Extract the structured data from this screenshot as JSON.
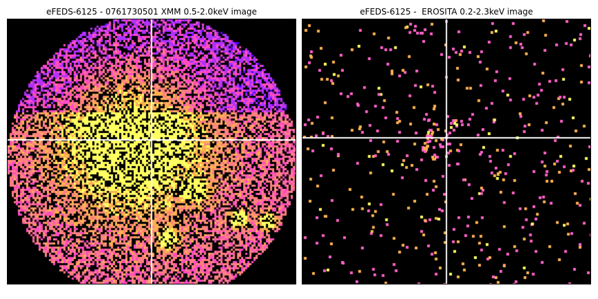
{
  "panels": [
    {
      "title": "eFEDS-6125 - 0761730501 XMM 0.5-2.0keV image",
      "instrument": "XMM",
      "band": "0.5-2.0keV",
      "background": "#000000",
      "crosshair_color": "#ffffff",
      "colormap": [
        "#000000",
        "#5a00ff",
        "#b030ff",
        "#ff4cc0",
        "#ff8080",
        "#ffb050",
        "#ffff60"
      ]
    },
    {
      "title": "eFEDS-6125 -  EROSITA 0.2-2.3keV image",
      "instrument": "EROSITA",
      "band": "0.2-2.3keV",
      "background": "#000000",
      "crosshair_color": "#ffffff",
      "colormap": [
        "#000000",
        "#ff60c8",
        "#ffb050",
        "#ffff60"
      ]
    }
  ]
}
